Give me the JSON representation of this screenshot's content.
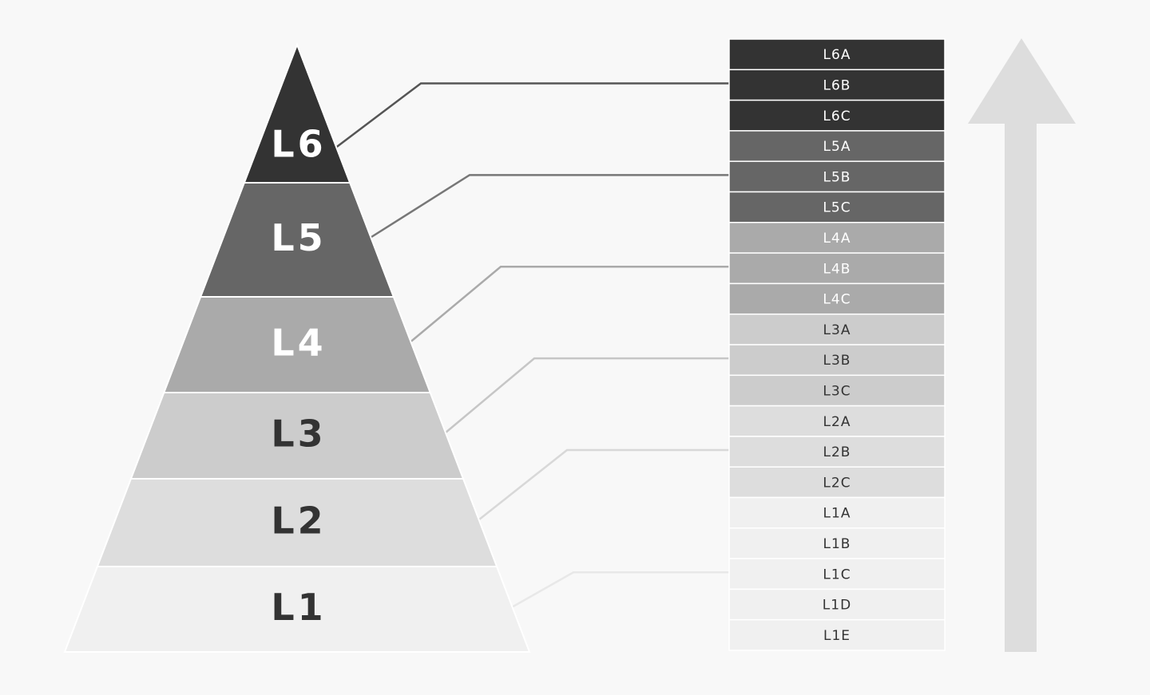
{
  "levels": [
    {
      "label": "L6",
      "fill": "#333333",
      "text_color": "#ffffff",
      "line_color": "#555555"
    },
    {
      "label": "L5",
      "fill": "#666666",
      "text_color": "#ffffff",
      "line_color": "#777777"
    },
    {
      "label": "L4",
      "fill": "#aaaaaa",
      "text_color": "#ffffff",
      "line_color": "#aaaaaa"
    },
    {
      "label": "L3",
      "fill": "#cccccc",
      "text_color": "#333333",
      "line_color": "#c6c6c6"
    },
    {
      "label": "L2",
      "fill": "#dddddd",
      "text_color": "#333333",
      "line_color": "#d8d8d8"
    },
    {
      "label": "L1",
      "fill": "#f0f0f0",
      "text_color": "#333333",
      "line_color": "#e8e8e8"
    }
  ],
  "sublevels": [
    {
      "label": "L6A",
      "fill": "#333333",
      "text_color": "#ffffff"
    },
    {
      "label": "L6B",
      "fill": "#333333",
      "text_color": "#ffffff"
    },
    {
      "label": "L6C",
      "fill": "#333333",
      "text_color": "#ffffff"
    },
    {
      "label": "L5A",
      "fill": "#666666",
      "text_color": "#ffffff"
    },
    {
      "label": "L5B",
      "fill": "#666666",
      "text_color": "#ffffff"
    },
    {
      "label": "L5C",
      "fill": "#666666",
      "text_color": "#ffffff"
    },
    {
      "label": "L4A",
      "fill": "#aaaaaa",
      "text_color": "#ffffff"
    },
    {
      "label": "L4B",
      "fill": "#aaaaaa",
      "text_color": "#ffffff"
    },
    {
      "label": "L4C",
      "fill": "#aaaaaa",
      "text_color": "#ffffff"
    },
    {
      "label": "L3A",
      "fill": "#cccccc",
      "text_color": "#333333"
    },
    {
      "label": "L3B",
      "fill": "#cccccc",
      "text_color": "#333333"
    },
    {
      "label": "L3C",
      "fill": "#cccccc",
      "text_color": "#333333"
    },
    {
      "label": "L2A",
      "fill": "#dddddd",
      "text_color": "#333333"
    },
    {
      "label": "L2B",
      "fill": "#dddddd",
      "text_color": "#333333"
    },
    {
      "label": "L2C",
      "fill": "#dddddd",
      "text_color": "#333333"
    },
    {
      "label": "L1A",
      "fill": "#f0f0f0",
      "text_color": "#333333"
    },
    {
      "label": "L1B",
      "fill": "#f0f0f0",
      "text_color": "#333333"
    },
    {
      "label": "L1C",
      "fill": "#f0f0f0",
      "text_color": "#333333"
    },
    {
      "label": "L1D",
      "fill": "#f0f0f0",
      "text_color": "#333333"
    },
    {
      "label": "L1E",
      "fill": "#f0f0f0",
      "text_color": "#333333"
    }
  ],
  "arrow": {
    "direction": "up",
    "color": "#dddddd"
  },
  "background": "#f8f8f8"
}
